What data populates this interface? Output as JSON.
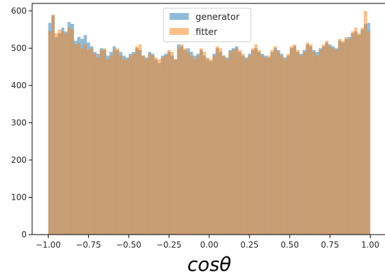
{
  "chart_data": {
    "type": "bar",
    "xlabel": "cosθ",
    "ylabel": "",
    "xlim": [
      -1.1,
      1.1
    ],
    "ylim": [
      0,
      620
    ],
    "bins": {
      "start": -1.0,
      "end": 1.0,
      "count": 100
    },
    "xticks": [
      -1.0,
      -0.75,
      -0.5,
      -0.25,
      0.0,
      0.25,
      0.5,
      0.75,
      1.0
    ],
    "xtick_labels": [
      "−1.00",
      "−0.75",
      "−0.50",
      "−0.25",
      "0.00",
      "0.25",
      "0.50",
      "0.75",
      "1.00"
    ],
    "yticks": [
      0,
      100,
      200,
      300,
      400,
      500,
      600
    ],
    "ytick_labels": [
      "0",
      "100",
      "200",
      "300",
      "400",
      "500",
      "600"
    ],
    "legend": {
      "placement": "top-center"
    },
    "grid": false,
    "series": [
      {
        "name": "generator",
        "color": "#1f77b4",
        "opacity": 0.5,
        "values": [
          568,
          588,
          530,
          540,
          555,
          545,
          570,
          565,
          520,
          530,
          525,
          535,
          515,
          505,
          490,
          485,
          500,
          495,
          480,
          490,
          505,
          495,
          490,
          480,
          475,
          485,
          490,
          500,
          495,
          480,
          475,
          490,
          485,
          470,
          460,
          480,
          485,
          490,
          480,
          470,
          510,
          505,
          495,
          500,
          490,
          480,
          485,
          495,
          480,
          470,
          465,
          485,
          500,
          490,
          480,
          475,
          495,
          500,
          505,
          490,
          480,
          475,
          485,
          495,
          500,
          490,
          485,
          480,
          475,
          490,
          500,
          495,
          485,
          475,
          480,
          500,
          505,
          490,
          485,
          495,
          510,
          505,
          495,
          490,
          500,
          505,
          515,
          510,
          505,
          500,
          520,
          515,
          525,
          530,
          540,
          545,
          535,
          550,
          565,
          568
        ]
      },
      {
        "name": "fitter",
        "color": "#ff7f0e",
        "opacity": 0.5,
        "values": [
          545,
          590,
          540,
          550,
          545,
          540,
          555,
          550,
          510,
          515,
          500,
          510,
          495,
          500,
          485,
          475,
          495,
          500,
          470,
          480,
          495,
          500,
          480,
          470,
          470,
          480,
          485,
          505,
          510,
          480,
          470,
          485,
          480,
          475,
          470,
          475,
          480,
          495,
          490,
          470,
          500,
          510,
          500,
          490,
          480,
          470,
          480,
          500,
          490,
          475,
          470,
          480,
          505,
          500,
          480,
          470,
          490,
          495,
          500,
          495,
          485,
          470,
          480,
          500,
          510,
          495,
          480,
          475,
          480,
          495,
          505,
          490,
          480,
          470,
          485,
          505,
          510,
          495,
          480,
          490,
          515,
          510,
          490,
          480,
          495,
          510,
          520,
          505,
          500,
          495,
          525,
          520,
          530,
          525,
          545,
          555,
          540,
          555,
          600,
          545
        ]
      }
    ]
  }
}
